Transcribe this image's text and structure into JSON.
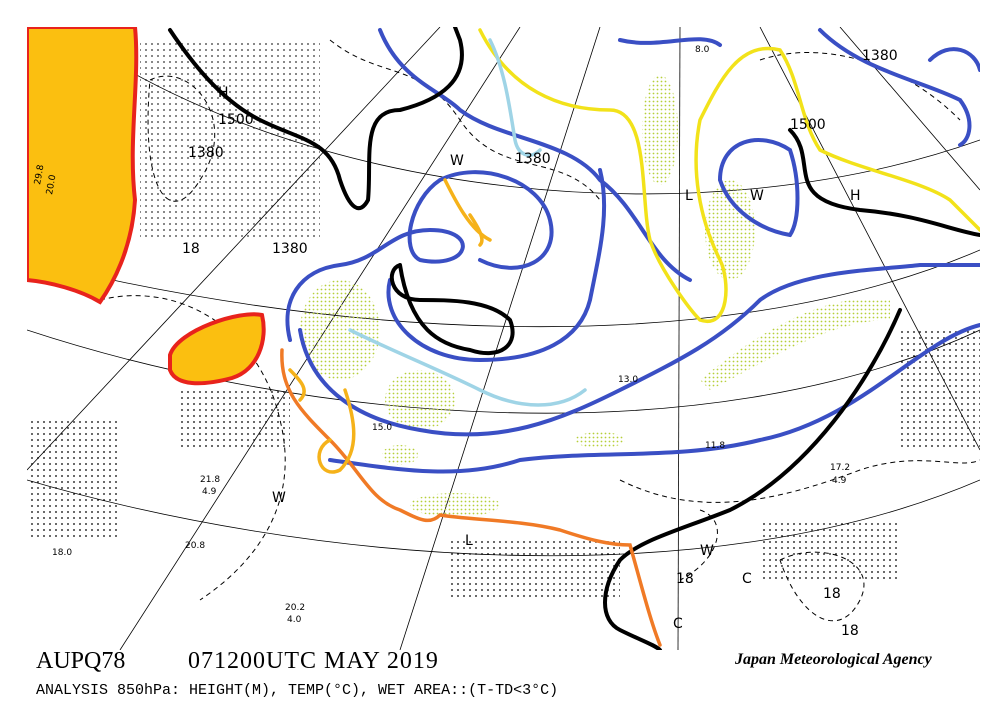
{
  "header": {
    "code": "AUPQ78",
    "time": "071200UTC MAY 2019",
    "agency": "Japan Meteorological Agency",
    "description": "ANALYSIS 850hPa: HEIGHT(M), TEMP(°C), WET AREA::(T-TD<3°C)"
  },
  "map": {
    "labels": [
      "H",
      "1500",
      "1380",
      "18",
      "1380",
      "W",
      "1380",
      "H",
      "1500",
      "1380",
      "L",
      "W",
      "L",
      "W",
      "C",
      "18",
      "18",
      "18",
      "C",
      "W",
      "17.2",
      "4.9",
      "29.8",
      "20.0",
      "21.8",
      "4.9",
      "20.2",
      "4.0",
      "20.8",
      "18.0",
      "15.0",
      "13.0",
      "11.8",
      "8.0"
    ]
  }
}
